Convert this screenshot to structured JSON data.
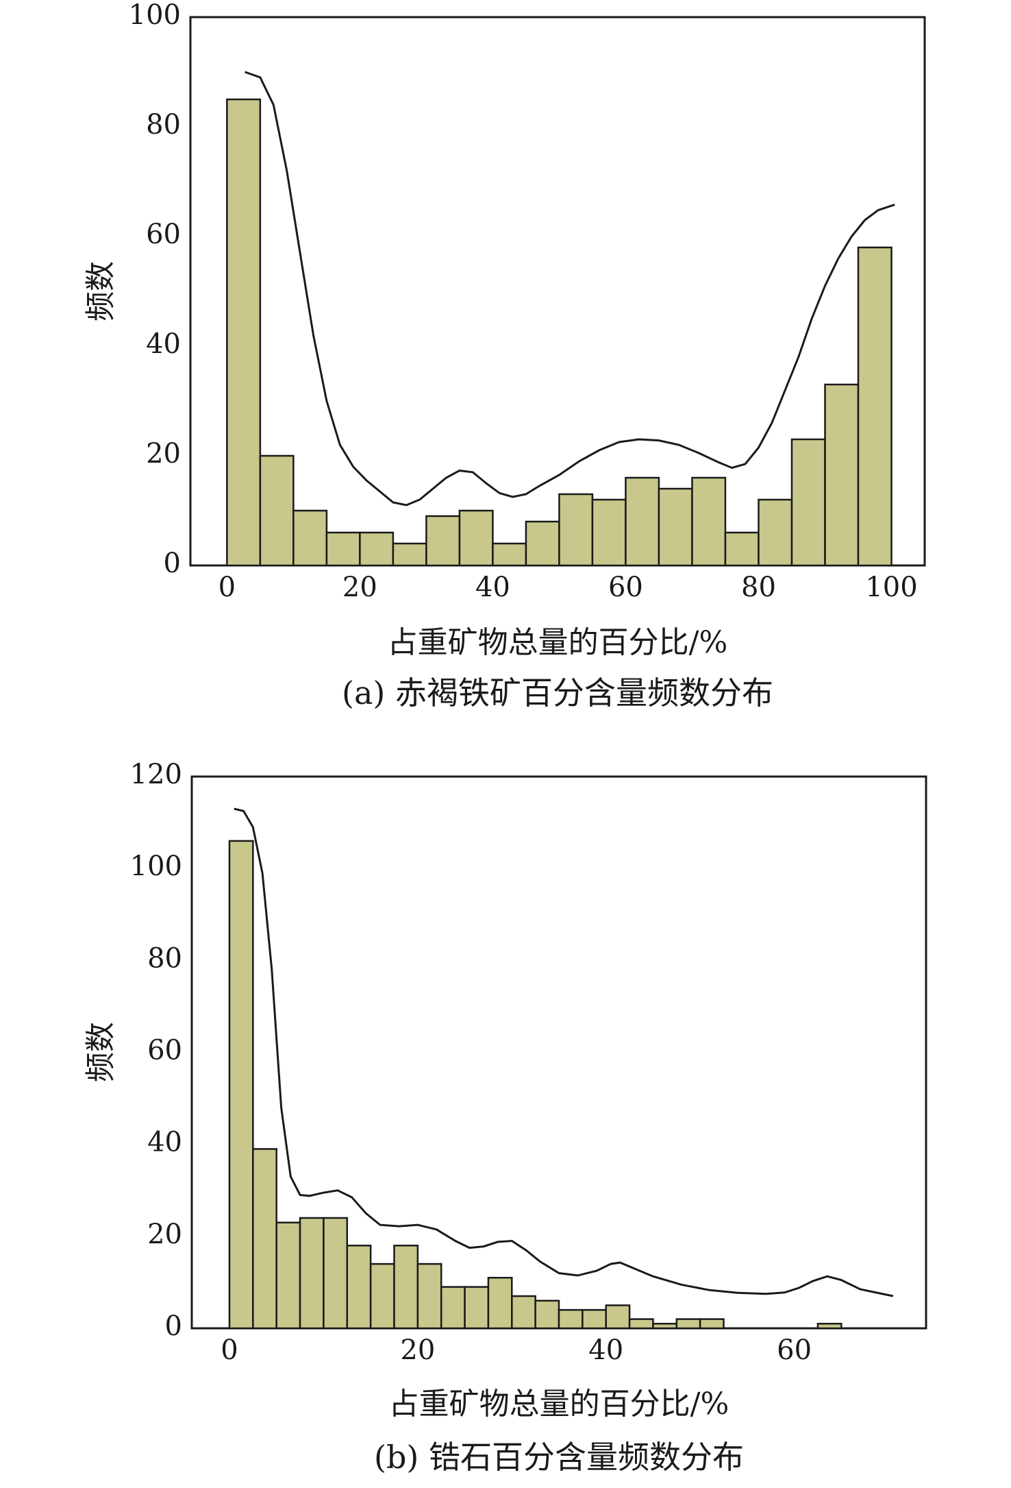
{
  "chart_data": [
    {
      "type": "bar",
      "caption": "(a) 赤褐铁矿百分含量频数分布",
      "xlabel": "占重矿物总量的百分比/%",
      "ylabel": "频数",
      "xlim": [
        -5.5,
        105
      ],
      "ylim": [
        0,
        100
      ],
      "xticks": [
        0,
        20,
        40,
        60,
        80,
        100
      ],
      "yticks": [
        0,
        20,
        40,
        60,
        80,
        100
      ],
      "bar_color": "#c8c88c",
      "bins": [
        {
          "x0": 0,
          "x1": 5,
          "count": 85
        },
        {
          "x0": 5,
          "x1": 10,
          "count": 20
        },
        {
          "x0": 10,
          "x1": 15,
          "count": 10
        },
        {
          "x0": 15,
          "x1": 20,
          "count": 6
        },
        {
          "x0": 20,
          "x1": 25,
          "count": 6
        },
        {
          "x0": 25,
          "x1": 30,
          "count": 4
        },
        {
          "x0": 30,
          "x1": 35,
          "count": 9
        },
        {
          "x0": 35,
          "x1": 40,
          "count": 10
        },
        {
          "x0": 40,
          "x1": 45,
          "count": 4
        },
        {
          "x0": 45,
          "x1": 50,
          "count": 8
        },
        {
          "x0": 50,
          "x1": 55,
          "count": 13
        },
        {
          "x0": 55,
          "x1": 60,
          "count": 12
        },
        {
          "x0": 60,
          "x1": 65,
          "count": 16
        },
        {
          "x0": 65,
          "x1": 70,
          "count": 14
        },
        {
          "x0": 70,
          "x1": 75,
          "count": 16
        },
        {
          "x0": 75,
          "x1": 80,
          "count": 6
        },
        {
          "x0": 80,
          "x1": 85,
          "count": 12
        },
        {
          "x0": 85,
          "x1": 90,
          "count": 23
        },
        {
          "x0": 90,
          "x1": 95,
          "count": 33
        },
        {
          "x0": 95,
          "x1": 100,
          "count": 58
        }
      ],
      "curve": [
        [
          2.7,
          90
        ],
        [
          5,
          89
        ],
        [
          7,
          84
        ],
        [
          9,
          72
        ],
        [
          11,
          57
        ],
        [
          13,
          42
        ],
        [
          15,
          30
        ],
        [
          17,
          22
        ],
        [
          19,
          18
        ],
        [
          21,
          15.5
        ],
        [
          23,
          13.5
        ],
        [
          25,
          11.5
        ],
        [
          27,
          11
        ],
        [
          29,
          12
        ],
        [
          31,
          14
        ],
        [
          33,
          16
        ],
        [
          35,
          17.3
        ],
        [
          37,
          17
        ],
        [
          39,
          15
        ],
        [
          41,
          13.2
        ],
        [
          43,
          12.5
        ],
        [
          45,
          13
        ],
        [
          47,
          14.5
        ],
        [
          50,
          16.5
        ],
        [
          53,
          19
        ],
        [
          56,
          21
        ],
        [
          59,
          22.5
        ],
        [
          62,
          23
        ],
        [
          65,
          22.8
        ],
        [
          68,
          22
        ],
        [
          71,
          20.5
        ],
        [
          74,
          18.8
        ],
        [
          76,
          17.8
        ],
        [
          78,
          18.5
        ],
        [
          80,
          21.5
        ],
        [
          82,
          26
        ],
        [
          84,
          32
        ],
        [
          86,
          38
        ],
        [
          88,
          45
        ],
        [
          90,
          51
        ],
        [
          92,
          56
        ],
        [
          94,
          60
        ],
        [
          96,
          63
        ],
        [
          98,
          64.8
        ],
        [
          100.5,
          65.8
        ]
      ]
    },
    {
      "type": "bar",
      "caption": "(b) 锆石百分含量频数分布",
      "xlabel": "占重矿物总量的百分比/%",
      "ylabel": "频数",
      "xlim": [
        -4,
        74
      ],
      "ylim": [
        0,
        120
      ],
      "xticks": [
        0,
        20,
        40,
        60
      ],
      "yticks": [
        0,
        20,
        40,
        60,
        80,
        100,
        120
      ],
      "bar_color": "#c8c88c",
      "bins": [
        {
          "x0": 0,
          "x1": 2.5,
          "count": 106
        },
        {
          "x0": 2.5,
          "x1": 5,
          "count": 39
        },
        {
          "x0": 5,
          "x1": 7.5,
          "count": 23
        },
        {
          "x0": 7.5,
          "x1": 10,
          "count": 24
        },
        {
          "x0": 10,
          "x1": 12.5,
          "count": 24
        },
        {
          "x0": 12.5,
          "x1": 15,
          "count": 18
        },
        {
          "x0": 15,
          "x1": 17.5,
          "count": 14
        },
        {
          "x0": 17.5,
          "x1": 20,
          "count": 18
        },
        {
          "x0": 20,
          "x1": 22.5,
          "count": 14
        },
        {
          "x0": 22.5,
          "x1": 25,
          "count": 9
        },
        {
          "x0": 25,
          "x1": 27.5,
          "count": 9
        },
        {
          "x0": 27.5,
          "x1": 30,
          "count": 11
        },
        {
          "x0": 30,
          "x1": 32.5,
          "count": 7
        },
        {
          "x0": 32.5,
          "x1": 35,
          "count": 6
        },
        {
          "x0": 35,
          "x1": 37.5,
          "count": 4
        },
        {
          "x0": 37.5,
          "x1": 40,
          "count": 4
        },
        {
          "x0": 40,
          "x1": 42.5,
          "count": 5
        },
        {
          "x0": 42.5,
          "x1": 45,
          "count": 2
        },
        {
          "x0": 45,
          "x1": 47.5,
          "count": 1
        },
        {
          "x0": 47.5,
          "x1": 50,
          "count": 2
        },
        {
          "x0": 50,
          "x1": 52.5,
          "count": 2
        },
        {
          "x0": 62.5,
          "x1": 65,
          "count": 1
        }
      ],
      "curve": [
        [
          0.5,
          113
        ],
        [
          1.5,
          112.5
        ],
        [
          2.5,
          109
        ],
        [
          3.5,
          99
        ],
        [
          4.5,
          78
        ],
        [
          5.5,
          48
        ],
        [
          6.5,
          33
        ],
        [
          7.5,
          29
        ],
        [
          8.5,
          28.8
        ],
        [
          10,
          29.5
        ],
        [
          11.5,
          30
        ],
        [
          13,
          28.5
        ],
        [
          14.5,
          25
        ],
        [
          16,
          22.5
        ],
        [
          18,
          22.2
        ],
        [
          20,
          22.5
        ],
        [
          22,
          21.5
        ],
        [
          24,
          19
        ],
        [
          25.5,
          17.5
        ],
        [
          27,
          17.8
        ],
        [
          28.5,
          18.8
        ],
        [
          30,
          19
        ],
        [
          31.5,
          17
        ],
        [
          33,
          14.5
        ],
        [
          35,
          12
        ],
        [
          37,
          11.5
        ],
        [
          39,
          12.5
        ],
        [
          40.5,
          14
        ],
        [
          41.5,
          14.3
        ],
        [
          43,
          13
        ],
        [
          45,
          11.3
        ],
        [
          48,
          9.5
        ],
        [
          51,
          8.3
        ],
        [
          54,
          7.7
        ],
        [
          57,
          7.5
        ],
        [
          59,
          7.8
        ],
        [
          60.5,
          8.8
        ],
        [
          62,
          10.3
        ],
        [
          63.5,
          11.3
        ],
        [
          65,
          10.5
        ],
        [
          67,
          8.5
        ],
        [
          70.5,
          7
        ]
      ]
    }
  ]
}
